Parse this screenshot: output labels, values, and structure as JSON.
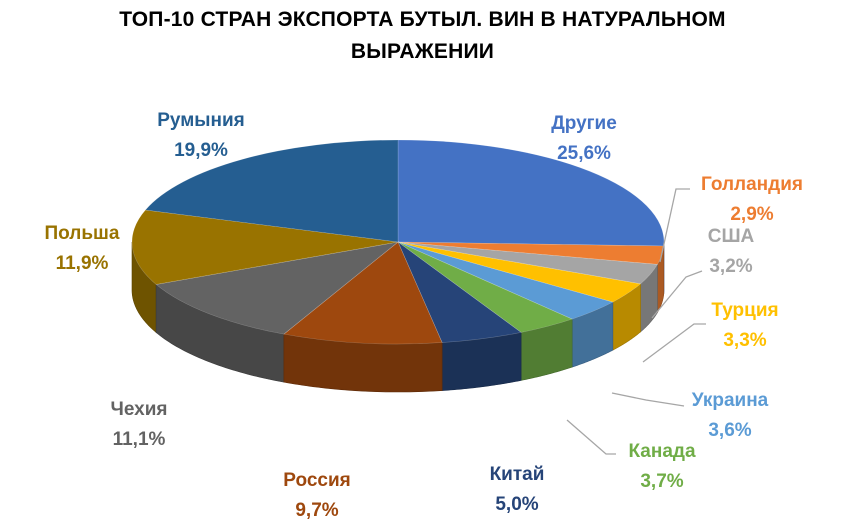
{
  "title": {
    "line1": "ТОП-10 СТРАН ЭКСПОРТА БУТЫЛ. ВИН В НАТУРАЛЬНОМ",
    "line2": "ВЫРАЖЕНИИ"
  },
  "chart_data": {
    "type": "pie",
    "title": "ТОП-10 СТРАН ЭКСПОРТА БУТЫЛ. ВИН В НАТУРАЛЬНОМ ВЫРАЖЕНИИ",
    "style": "3d",
    "legend": "none",
    "categories": [
      "Другие",
      "Голландия",
      "США",
      "Турция",
      "Украина",
      "Канада",
      "Китай",
      "Россия",
      "Чехия",
      "Польша",
      "Румыния"
    ],
    "values": [
      25.6,
      2.9,
      3.2,
      3.3,
      3.6,
      3.7,
      5.0,
      9.7,
      11.1,
      11.9,
      19.9
    ],
    "value_labels": [
      "25,6%",
      "2,9%",
      "3,2%",
      "3,3%",
      "3,6%",
      "3,7%",
      "5,0%",
      "9,7%",
      "11,1%",
      "11,9%",
      "19,9%"
    ],
    "colors": [
      "#4472C4",
      "#ED7D31",
      "#A5A5A5",
      "#FFC000",
      "#5B9BD5",
      "#70AD47",
      "#264478",
      "#9E480E",
      "#636363",
      "#997300",
      "#255E91"
    ],
    "label_colors": [
      "#4472C4",
      "#ED7D31",
      "#A5A5A5",
      "#FFC000",
      "#5B9BD5",
      "#70AD47",
      "#264478",
      "#9E480E",
      "#636363",
      "#997300",
      "#255E91"
    ]
  }
}
